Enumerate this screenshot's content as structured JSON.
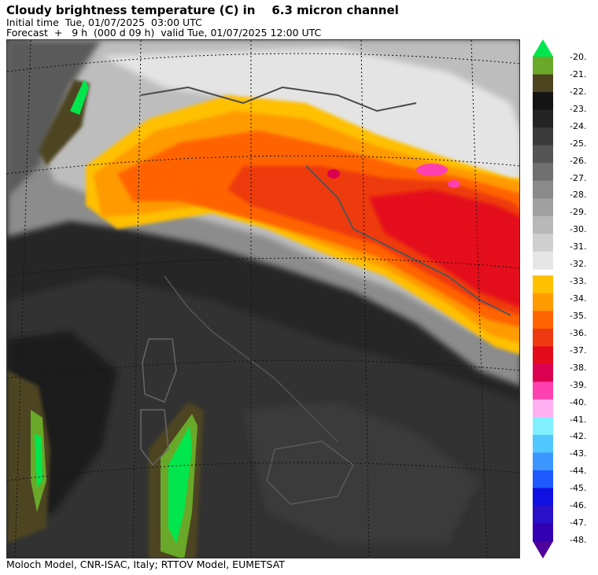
{
  "header": {
    "title": "Cloudy brightness temperature (C) in    6.3 micron channel",
    "initial_time": "Initial time  Tue, 01/07/2025  03:00 UTC",
    "forecast": "Forecast  +   9 h  (000 d 09 h)  valid Tue, 01/07/2025 12:00 UTC"
  },
  "footer": {
    "credits": "Moloch Model, CNR-ISAC, Italy; RTTOV Model, EUMETSAT"
  },
  "colorbar": {
    "labels": [
      "-20.",
      "-21.",
      "-22.",
      "-23.",
      "-24.",
      "-25.",
      "-26.",
      "-27.",
      "-28.",
      "-29.",
      "-30.",
      "-31.",
      "-32.",
      "-33.",
      "-34.",
      "-35.",
      "-36.",
      "-37.",
      "-38.",
      "-39.",
      "-40.",
      "-41.",
      "-42.",
      "-43.",
      "-44.",
      "-45.",
      "-46.",
      "-47.",
      "-48."
    ],
    "colors": [
      "#6aa82a",
      "#4d4420",
      "#141414",
      "#242424",
      "#3a3a3a",
      "#555555",
      "#707070",
      "#8a8a8a",
      "#a0a0a0",
      "#b8b8b8",
      "#cfcfcf",
      "#e6e6e6",
      "#ffc000",
      "#ff9a00",
      "#ff6400",
      "#ee3a10",
      "#e40c1c",
      "#dc0050",
      "#ff40b0",
      "#ffb0f0",
      "#80f0ff",
      "#50c8ff",
      "#3c96ff",
      "#1e5aff",
      "#1010e0",
      "#2a10c8",
      "#3200b0"
    ],
    "top_arrow_color": "#00e64c",
    "bottom_arrow_color": "#50009a"
  }
}
